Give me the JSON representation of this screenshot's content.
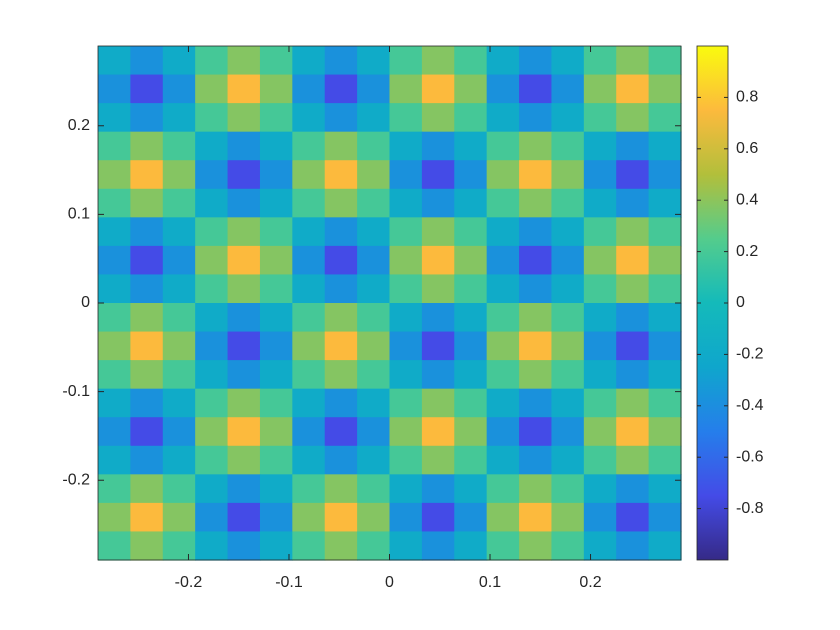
{
  "chart_data": {
    "type": "heatmap",
    "xlim": [
      -0.29,
      0.29
    ],
    "ylim": [
      -0.29,
      0.29
    ],
    "xticks": [
      -0.2,
      -0.1,
      0,
      0.1,
      0.2
    ],
    "yticks": [
      -0.2,
      -0.1,
      0,
      0.1,
      0.2
    ],
    "clim": [
      -1,
      1
    ],
    "cticks": [
      -0.8,
      -0.6,
      -0.4,
      -0.2,
      0,
      0.2,
      0.4,
      0.6,
      0.8
    ],
    "colormap": "parula",
    "z": [
      [
        -0.19,
        -0.38,
        -0.19,
        0.19,
        0.38,
        0.19,
        -0.19,
        -0.38,
        -0.19,
        0.19,
        0.38,
        0.19,
        -0.19,
        -0.38,
        -0.19,
        0.19,
        0.38,
        0.19
      ],
      [
        -0.38,
        -0.75,
        -0.38,
        0.38,
        0.75,
        0.38,
        -0.38,
        -0.75,
        -0.38,
        0.38,
        0.75,
        0.38,
        -0.38,
        -0.75,
        -0.38,
        0.38,
        0.75,
        0.38
      ],
      [
        -0.19,
        -0.38,
        -0.19,
        0.19,
        0.38,
        0.19,
        -0.19,
        -0.38,
        -0.19,
        0.19,
        0.38,
        0.19,
        -0.19,
        -0.38,
        -0.19,
        0.19,
        0.38,
        0.19
      ],
      [
        0.19,
        0.38,
        0.19,
        -0.19,
        -0.38,
        -0.19,
        0.19,
        0.38,
        0.19,
        -0.19,
        -0.38,
        -0.19,
        0.19,
        0.38,
        0.19,
        -0.19,
        -0.38,
        -0.19
      ],
      [
        0.38,
        0.75,
        0.38,
        -0.38,
        -0.75,
        -0.38,
        0.38,
        0.75,
        0.38,
        -0.38,
        -0.75,
        -0.38,
        0.38,
        0.75,
        0.38,
        -0.38,
        -0.75,
        -0.38
      ],
      [
        0.19,
        0.38,
        0.19,
        -0.19,
        -0.38,
        -0.19,
        0.19,
        0.38,
        0.19,
        -0.19,
        -0.38,
        -0.19,
        0.19,
        0.38,
        0.19,
        -0.19,
        -0.38,
        -0.19
      ],
      [
        -0.19,
        -0.38,
        -0.19,
        0.19,
        0.38,
        0.19,
        -0.19,
        -0.38,
        -0.19,
        0.19,
        0.38,
        0.19,
        -0.19,
        -0.38,
        -0.19,
        0.19,
        0.38,
        0.19
      ],
      [
        -0.38,
        -0.75,
        -0.38,
        0.38,
        0.75,
        0.38,
        -0.38,
        -0.75,
        -0.38,
        0.38,
        0.75,
        0.38,
        -0.38,
        -0.75,
        -0.38,
        0.38,
        0.75,
        0.38
      ],
      [
        -0.19,
        -0.38,
        -0.19,
        0.19,
        0.38,
        0.19,
        -0.19,
        -0.38,
        -0.19,
        0.19,
        0.38,
        0.19,
        -0.19,
        -0.38,
        -0.19,
        0.19,
        0.38,
        0.19
      ],
      [
        0.19,
        0.38,
        0.19,
        -0.19,
        -0.38,
        -0.19,
        0.19,
        0.38,
        0.19,
        -0.19,
        -0.38,
        -0.19,
        0.19,
        0.38,
        0.19,
        -0.19,
        -0.38,
        -0.19
      ],
      [
        0.38,
        0.75,
        0.38,
        -0.38,
        -0.75,
        -0.38,
        0.38,
        0.75,
        0.38,
        -0.38,
        -0.75,
        -0.38,
        0.38,
        0.75,
        0.38,
        -0.38,
        -0.75,
        -0.38
      ],
      [
        0.19,
        0.38,
        0.19,
        -0.19,
        -0.38,
        -0.19,
        0.19,
        0.38,
        0.19,
        -0.19,
        -0.38,
        -0.19,
        0.19,
        0.38,
        0.19,
        -0.19,
        -0.38,
        -0.19
      ],
      [
        -0.19,
        -0.38,
        -0.19,
        0.19,
        0.38,
        0.19,
        -0.19,
        -0.38,
        -0.19,
        0.19,
        0.38,
        0.19,
        -0.19,
        -0.38,
        -0.19,
        0.19,
        0.38,
        0.19
      ],
      [
        -0.38,
        -0.75,
        -0.38,
        0.38,
        0.75,
        0.38,
        -0.38,
        -0.75,
        -0.38,
        0.38,
        0.75,
        0.38,
        -0.38,
        -0.75,
        -0.38,
        0.38,
        0.75,
        0.38
      ],
      [
        -0.19,
        -0.38,
        -0.19,
        0.19,
        0.38,
        0.19,
        -0.19,
        -0.38,
        -0.19,
        0.19,
        0.38,
        0.19,
        -0.19,
        -0.38,
        -0.19,
        0.19,
        0.38,
        0.19
      ],
      [
        0.19,
        0.38,
        0.19,
        -0.19,
        -0.38,
        -0.19,
        0.19,
        0.38,
        0.19,
        -0.19,
        -0.38,
        -0.19,
        0.19,
        0.38,
        0.19,
        -0.19,
        -0.38,
        -0.19
      ],
      [
        0.38,
        0.75,
        0.38,
        -0.38,
        -0.75,
        -0.38,
        0.38,
        0.75,
        0.38,
        -0.38,
        -0.75,
        -0.38,
        0.38,
        0.75,
        0.38,
        -0.38,
        -0.75,
        -0.38
      ],
      [
        0.19,
        0.38,
        0.19,
        -0.19,
        -0.38,
        -0.19,
        0.19,
        0.38,
        0.19,
        -0.19,
        -0.38,
        -0.19,
        0.19,
        0.38,
        0.19,
        -0.19,
        -0.38,
        -0.19
      ]
    ]
  }
}
